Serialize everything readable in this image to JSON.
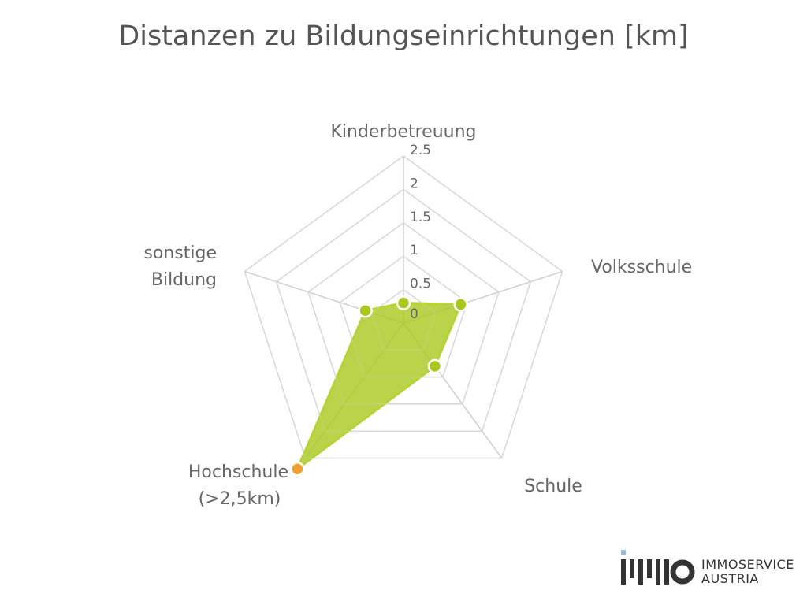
{
  "chart_data": {
    "type": "radar",
    "title": "Distanzen zu Bildungseinrichtungen [km]",
    "categories": [
      [
        "Kinderbetreuung"
      ],
      [
        "Volksschule"
      ],
      [
        "Schule"
      ],
      [
        "Hochschule",
        "(>2,5km)"
      ],
      [
        "sonstige",
        "Bildung"
      ]
    ],
    "values": [
      0.3,
      0.9,
      0.8,
      2.7,
      0.6
    ],
    "rlim": [
      0,
      2.5
    ],
    "ticks": [
      "0",
      "0.5",
      "1",
      "1.5",
      "2",
      "2.5"
    ],
    "tick_values": [
      0,
      0.5,
      1,
      1.5,
      2,
      2.5
    ],
    "colors": {
      "fill": "#a8c81e",
      "line": "#b5d334",
      "point": "#a8c81e",
      "outlier_point": "#f0a030",
      "grid": "#cfcfcf"
    },
    "outlier_index": 3
  },
  "logo": {
    "line1": "IMMOSERVICE",
    "line2": "AUSTRIA"
  }
}
